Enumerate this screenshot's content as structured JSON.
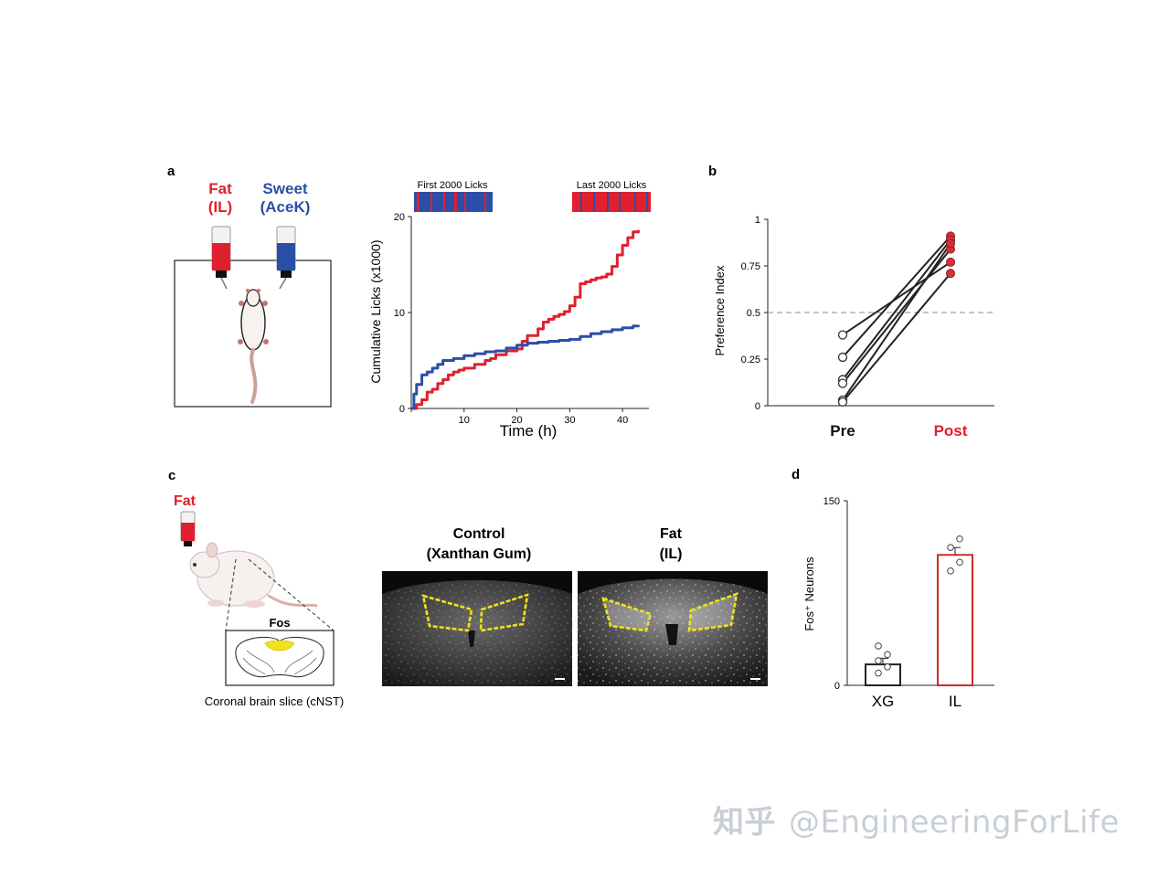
{
  "panels": {
    "a": {
      "letter": "a",
      "fat_label": "Fat",
      "fat_sub": "(IL)",
      "sweet_label": "Sweet",
      "sweet_sub": "(AceK)",
      "first_bar_label": "First 2000 Licks",
      "last_bar_label": "Last 2000 Licks"
    },
    "b": {
      "letter": "b"
    },
    "c": {
      "letter": "c",
      "fat_label": "Fat",
      "fos_label": "Fos",
      "slice_caption": "Coronal brain slice (cNST)",
      "control_title_1": "Control",
      "control_title_2": "(Xanthan Gum)",
      "fat_title_1": "Fat",
      "fat_title_2": "(IL)"
    },
    "d": {
      "letter": "d"
    }
  },
  "colors": {
    "fat": "#e0202e",
    "sweet": "#2b4ea8",
    "roi": "#f2e21a"
  },
  "chart_data": [
    {
      "id": "cumulative-licks",
      "type": "line",
      "xlabel": "Time (h)",
      "ylabel": "Cumulative Licks (x1000)",
      "xlim": [
        0,
        45
      ],
      "ylim": [
        0,
        20
      ],
      "xticks": [
        0,
        10,
        20,
        30,
        40
      ],
      "yticks": [
        0,
        10,
        20
      ],
      "series": [
        {
          "color": "#e0202e",
          "x": [
            0,
            1,
            2,
            3,
            4,
            5,
            6,
            7,
            8,
            9,
            10,
            12,
            14,
            15,
            16,
            18,
            20,
            21,
            22,
            24,
            25,
            26,
            27,
            28,
            29,
            30,
            31,
            32,
            33,
            34,
            35,
            36,
            37,
            38,
            39,
            40,
            41,
            42,
            43
          ],
          "y": [
            0,
            0.4,
            0.9,
            1.7,
            2.0,
            2.6,
            3.0,
            3.5,
            3.8,
            4.0,
            4.2,
            4.6,
            5.0,
            5.2,
            5.6,
            6.0,
            6.2,
            7.0,
            7.6,
            8.3,
            9.0,
            9.3,
            9.6,
            9.8,
            10.1,
            10.7,
            11.6,
            13.0,
            13.2,
            13.4,
            13.6,
            13.7,
            14.0,
            14.8,
            16.0,
            17.0,
            17.8,
            18.4,
            18.6
          ]
        },
        {
          "color": "#2b4ea8",
          "x": [
            0,
            0.5,
            1,
            2,
            3,
            4,
            5,
            6,
            8,
            10,
            12,
            14,
            16,
            18,
            20,
            22,
            24,
            26,
            28,
            30,
            32,
            34,
            36,
            38,
            40,
            42,
            43
          ],
          "y": [
            0,
            1.5,
            2.5,
            3.5,
            3.8,
            4.2,
            4.6,
            5.0,
            5.2,
            5.5,
            5.7,
            5.9,
            6.0,
            6.3,
            6.6,
            6.8,
            6.9,
            7.0,
            7.1,
            7.2,
            7.5,
            7.8,
            8.0,
            8.2,
            8.4,
            8.6,
            8.7
          ]
        }
      ]
    },
    {
      "id": "preference-index",
      "type": "line",
      "ylabel": "Preference Index",
      "categories": [
        "Pre",
        "Post"
      ],
      "ylim": [
        0,
        1
      ],
      "yticks": [
        0,
        0.25,
        0.5,
        0.75,
        1
      ],
      "ytick_labels": [
        "0",
        "0.25",
        "0.5",
        "0.75",
        "1"
      ],
      "reference_line": 0.5,
      "pairs": [
        [
          0.38,
          0.77
        ],
        [
          0.26,
          0.91
        ],
        [
          0.14,
          0.89
        ],
        [
          0.12,
          0.84
        ],
        [
          0.03,
          0.87
        ],
        [
          0.02,
          0.71
        ]
      ]
    },
    {
      "id": "fos-neurons",
      "type": "bar",
      "ylabel": "Fos⁺ Neurons",
      "categories": [
        "XG",
        "IL"
      ],
      "values": [
        17,
        106
      ],
      "errors": [
        5,
        6
      ],
      "ylim": [
        0,
        150
      ],
      "yticks": [
        0,
        150
      ],
      "points": [
        [
          10,
          15,
          20,
          25,
          32
        ],
        [
          93,
          100,
          112,
          119
        ]
      ],
      "bar_colors": [
        "#222222",
        "#d22a2a"
      ]
    }
  ],
  "watermark": {
    "logo": "知乎",
    "handle": "@EngineeringForLife"
  }
}
